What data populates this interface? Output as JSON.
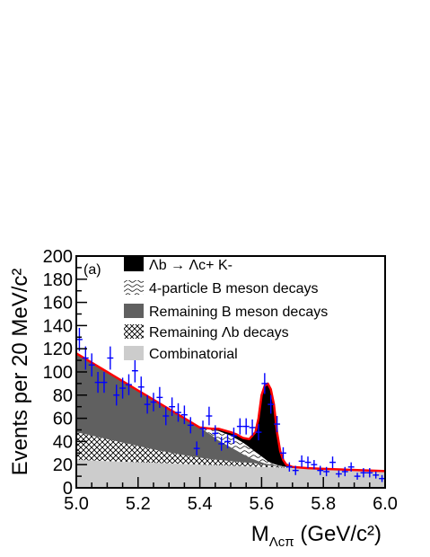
{
  "chart_data": {
    "type": "line",
    "panel_label": "(a)",
    "xlabel": "M",
    "xlabel_sub": "Λcπ",
    "xlabel_unit": " (GeV/c²)",
    "ylabel": "Events per 20 MeV/c²",
    "xlim": [
      5.0,
      6.0
    ],
    "ylim": [
      0,
      200
    ],
    "xticks": [
      "5.0",
      "5.2",
      "5.4",
      "5.6",
      "5.8",
      "6.0"
    ],
    "yticks": [
      "0",
      "20",
      "40",
      "60",
      "80",
      "100",
      "120",
      "140",
      "160",
      "180",
      "200"
    ],
    "legend": [
      {
        "key": "signal_lambdab_lck",
        "label": "Λb → Λc+ K-",
        "fill": "solid-black"
      },
      {
        "key": "four_particle_b",
        "label": "4-particle B meson decays",
        "fill": "wavy"
      },
      {
        "key": "remaining_b",
        "label": "Remaining B meson decays",
        "fill": "solid-dark-gray"
      },
      {
        "key": "remaining_lambdab",
        "label": "Remaining Λb decays",
        "fill": "crosshatch"
      },
      {
        "key": "combinatorial",
        "label": "Combinatorial",
        "fill": "solid-light-gray"
      }
    ],
    "x": [
      5.0,
      5.05,
      5.1,
      5.15,
      5.2,
      5.25,
      5.3,
      5.35,
      5.4,
      5.44,
      5.46,
      5.5,
      5.52,
      5.54,
      5.56,
      5.58,
      5.59,
      5.6,
      5.61,
      5.62,
      5.63,
      5.64,
      5.65,
      5.66,
      5.67,
      5.68,
      5.7,
      5.75,
      5.8,
      5.9,
      6.0
    ],
    "stack_cumulative": {
      "combinatorial": [
        24,
        23.5,
        23,
        22.5,
        22,
        21.5,
        21,
        20.5,
        20,
        19.6,
        19.4,
        19,
        18.8,
        18.6,
        18.4,
        18.2,
        18.1,
        18,
        17.9,
        17.8,
        17.7,
        17.6,
        17.5,
        17.4,
        17.3,
        17.2,
        17,
        16.5,
        16,
        15,
        14
      ],
      "remaining_lambdab": [
        48,
        45,
        42,
        39,
        36,
        33,
        30.5,
        28,
        26,
        24.5,
        24,
        23,
        22.5,
        22,
        21.5,
        21,
        20.5,
        20,
        19.7,
        19.4,
        19,
        18.7,
        18.4,
        18.2,
        18,
        17.8,
        17.5,
        16.8,
        16.2,
        15.2,
        14.2
      ],
      "remaining_b": [
        116,
        108,
        100,
        92,
        84,
        76,
        68,
        60,
        52,
        45,
        41,
        35,
        32,
        29,
        26,
        24,
        23,
        22,
        21,
        20.5,
        20,
        19.5,
        19,
        18.6,
        18.2,
        18,
        17.6,
        16.9,
        16.3,
        15.3,
        14.3
      ],
      "four_particle_b": [
        116,
        108,
        100,
        92,
        84,
        76,
        68,
        60,
        53,
        50,
        49,
        45,
        42,
        39,
        35,
        31,
        29,
        27,
        25,
        23,
        21.5,
        20.5,
        19.7,
        19,
        18.5,
        18.2,
        17.8,
        17,
        16.4,
        15.4,
        14.4
      ],
      "total_fit": [
        116,
        108,
        100,
        92,
        84,
        76,
        68,
        60,
        52,
        51,
        51,
        48,
        46,
        43,
        42,
        48,
        60,
        80,
        88,
        90,
        85,
        72,
        48,
        32,
        24,
        20,
        18,
        17,
        16.4,
        15.4,
        14.4
      ]
    },
    "points": {
      "x": [
        5.01,
        5.03,
        5.05,
        5.07,
        5.09,
        5.11,
        5.13,
        5.15,
        5.17,
        5.19,
        5.21,
        5.23,
        5.25,
        5.27,
        5.29,
        5.31,
        5.33,
        5.35,
        5.37,
        5.39,
        5.41,
        5.43,
        5.45,
        5.47,
        5.49,
        5.51,
        5.53,
        5.55,
        5.57,
        5.59,
        5.61,
        5.63,
        5.65,
        5.67,
        5.69,
        5.71,
        5.73,
        5.75,
        5.77,
        5.79,
        5.81,
        5.83,
        5.85,
        5.87,
        5.89,
        5.91,
        5.93,
        5.95,
        5.97,
        5.99
      ],
      "y": [
        128,
        112,
        106,
        91,
        91,
        112,
        80,
        86,
        89,
        101,
        87,
        72,
        74,
        78,
        62,
        70,
        65,
        63,
        54,
        34,
        51,
        62,
        47,
        38,
        40,
        45,
        53,
        53,
        52,
        48,
        90,
        72,
        55,
        30,
        18,
        15,
        23,
        22,
        20,
        15,
        14,
        22,
        12,
        14,
        18,
        10,
        13,
        13,
        11,
        8
      ],
      "err": [
        10,
        10,
        10,
        9,
        9,
        10,
        9,
        9,
        9,
        10,
        9,
        8,
        8,
        9,
        8,
        8,
        8,
        8,
        7,
        6,
        7,
        8,
        7,
        6,
        6,
        7,
        7,
        7,
        7,
        7,
        9,
        8,
        7,
        5,
        4,
        4,
        5,
        5,
        4,
        4,
        4,
        5,
        3,
        4,
        4,
        3,
        4,
        4,
        3,
        3
      ]
    },
    "colors": {
      "data": "#0000ff",
      "fit": "#ff0000",
      "remaining_b": "#606060",
      "combinatorial": "#cccccc",
      "signal": "#000000"
    }
  }
}
